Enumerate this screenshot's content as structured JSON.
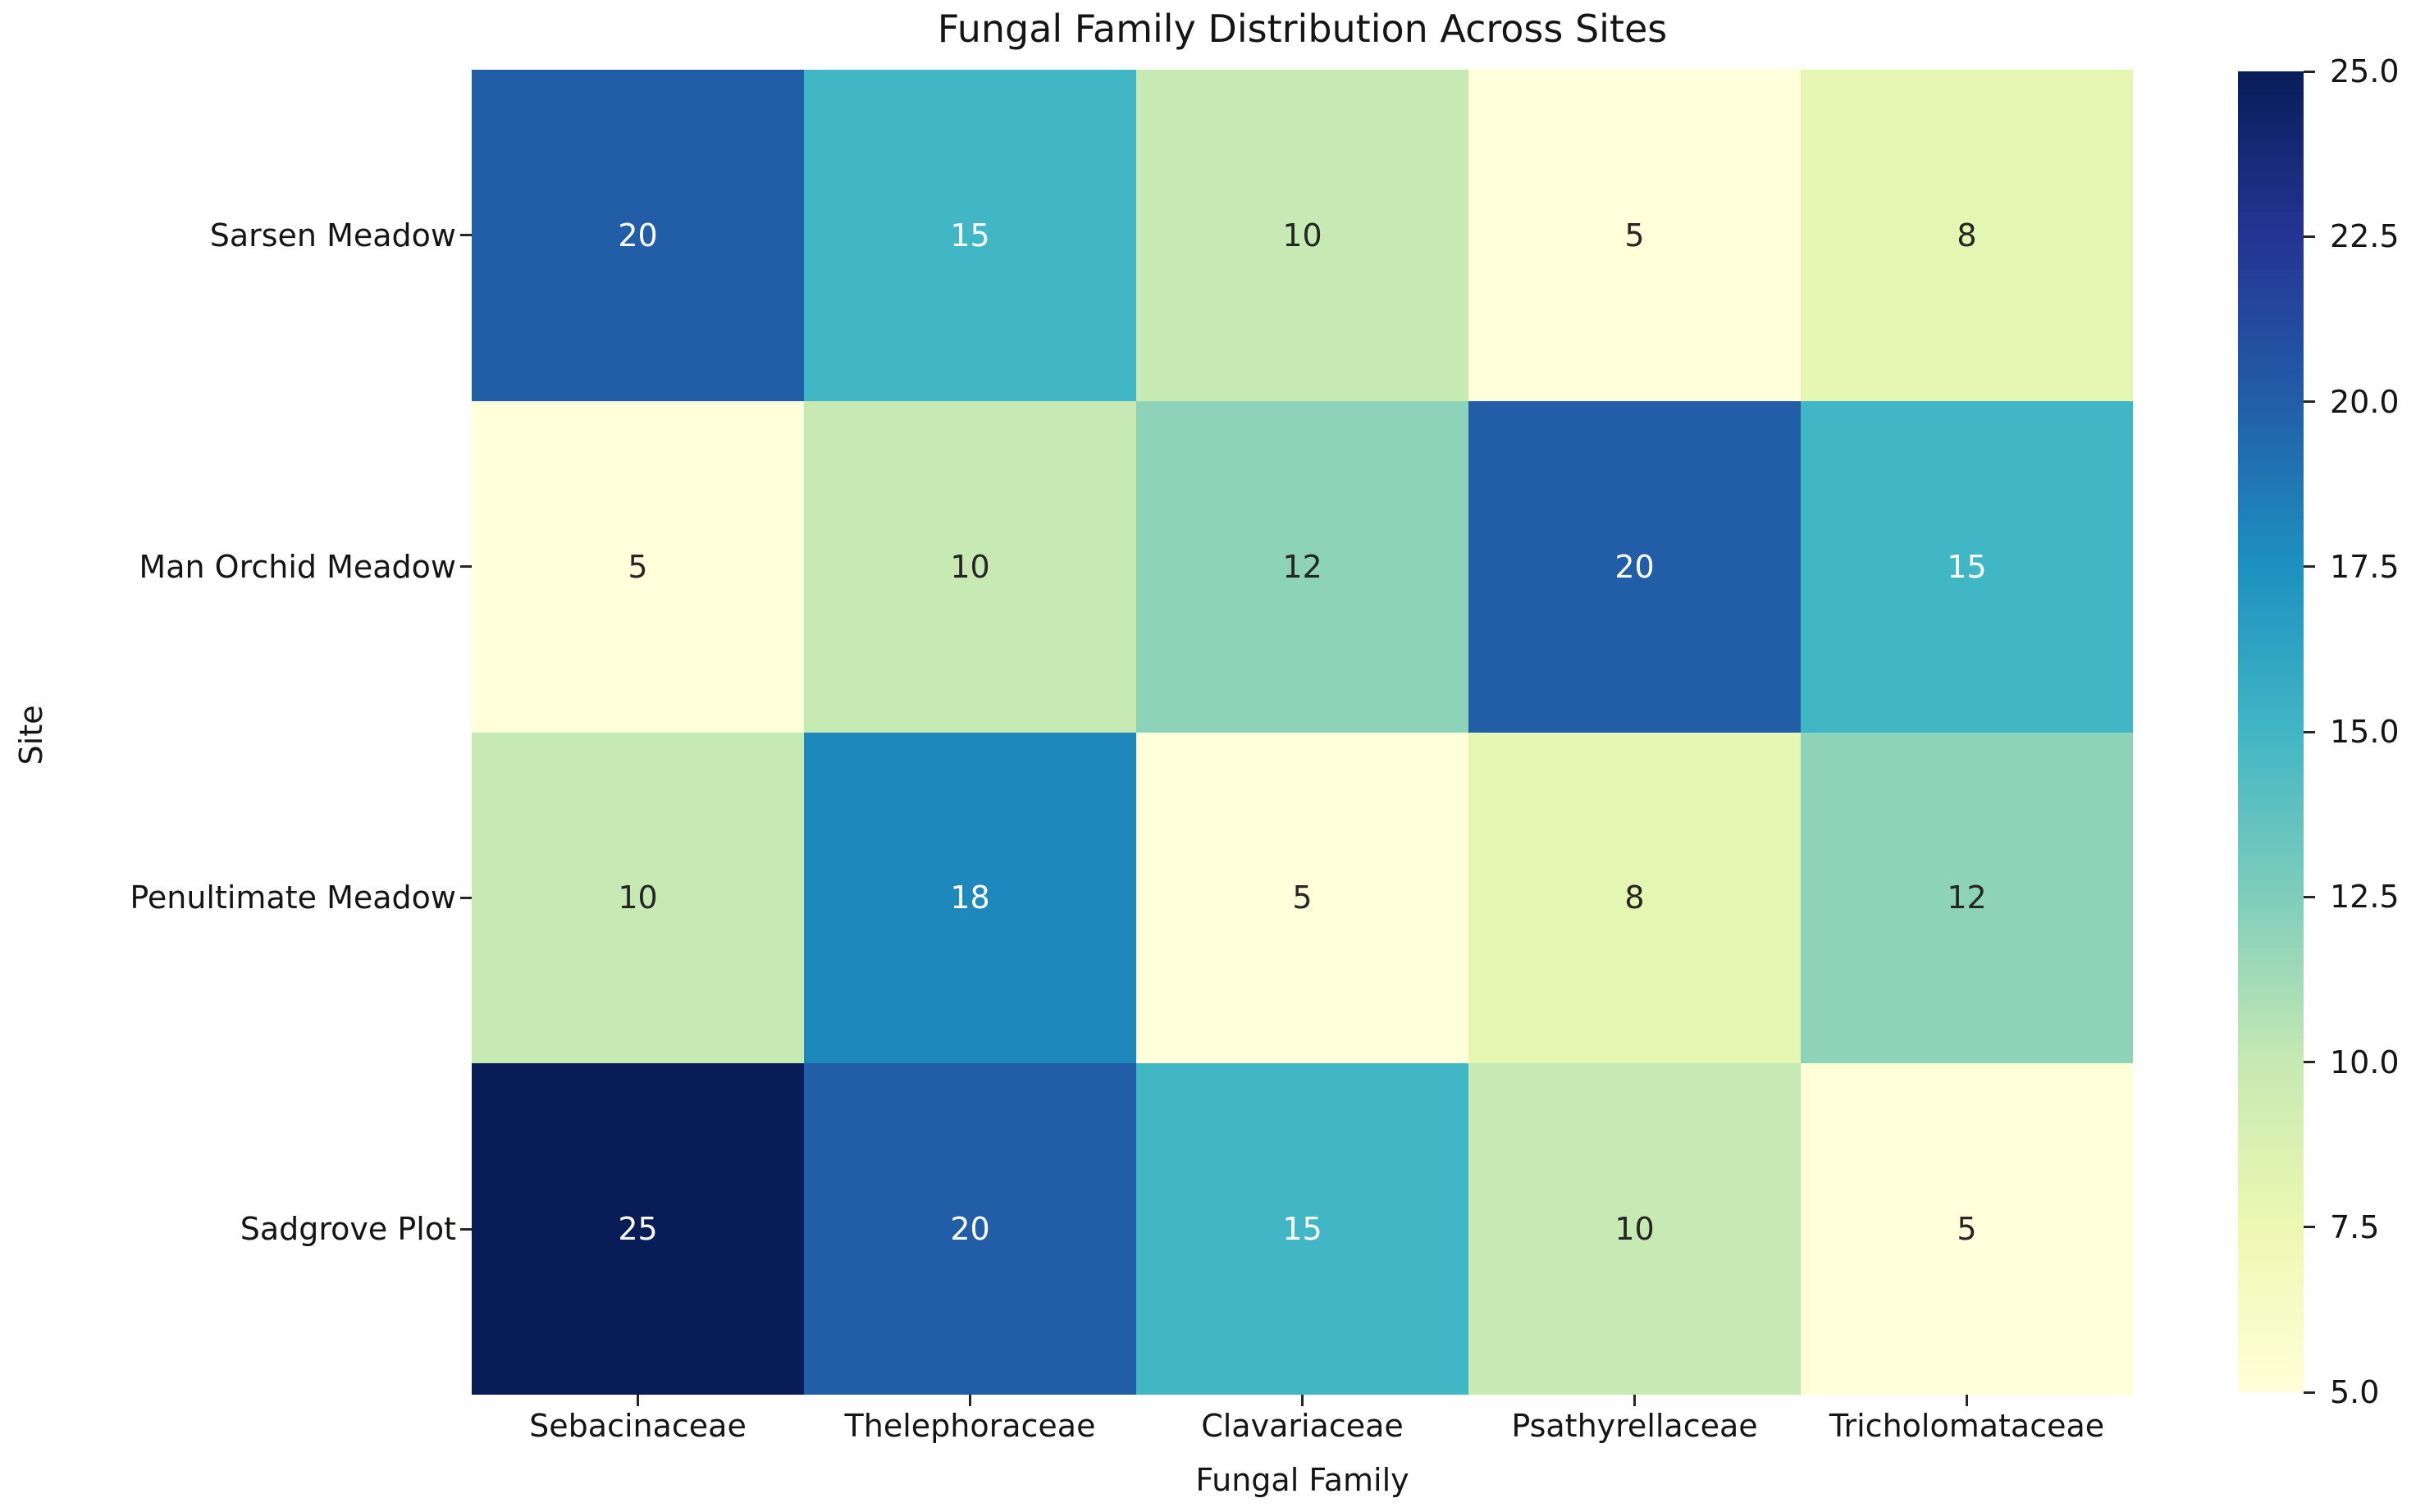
{
  "chart_data": {
    "type": "heatmap",
    "title": "Fungal Family Distribution Across Sites",
    "xlabel": "Fungal Family",
    "ylabel": "Site",
    "x_categories": [
      "Sebacinaceae",
      "Thelephoraceae",
      "Clavariaceae",
      "Psathyrellaceae",
      "Tricholomataceae"
    ],
    "y_categories": [
      "Sarsen Meadow",
      "Man Orchid Meadow",
      "Penultimate Meadow",
      "Sadgrove Plot"
    ],
    "values": [
      [
        20,
        15,
        10,
        5,
        8
      ],
      [
        5,
        10,
        12,
        20,
        15
      ],
      [
        10,
        18,
        5,
        8,
        12
      ],
      [
        25,
        20,
        15,
        10,
        5
      ]
    ],
    "vmin": 5,
    "vmax": 25,
    "colorbar_tick_labels": [
      "25.0",
      "22.5",
      "20.0",
      "17.5",
      "15.0",
      "12.5",
      "10.0",
      "7.5",
      "5.0"
    ],
    "colorbar_position": "right",
    "grid": false,
    "colormap": {
      "name": "YlGnBu",
      "stops": [
        {
          "pos": 0.0,
          "color": "#ffffd9"
        },
        {
          "pos": 0.125,
          "color": "#edf8b1"
        },
        {
          "pos": 0.25,
          "color": "#c7e9b4"
        },
        {
          "pos": 0.375,
          "color": "#7fcdbb"
        },
        {
          "pos": 0.5,
          "color": "#41b6c4"
        },
        {
          "pos": 0.625,
          "color": "#1d91c0"
        },
        {
          "pos": 0.75,
          "color": "#225ea8"
        },
        {
          "pos": 0.875,
          "color": "#253494"
        },
        {
          "pos": 1.0,
          "color": "#081d58"
        }
      ]
    },
    "annotation_text_colors": {
      "on_dark": "#ffffff",
      "on_light": "#262626"
    },
    "axis_text_color": "#151515"
  }
}
